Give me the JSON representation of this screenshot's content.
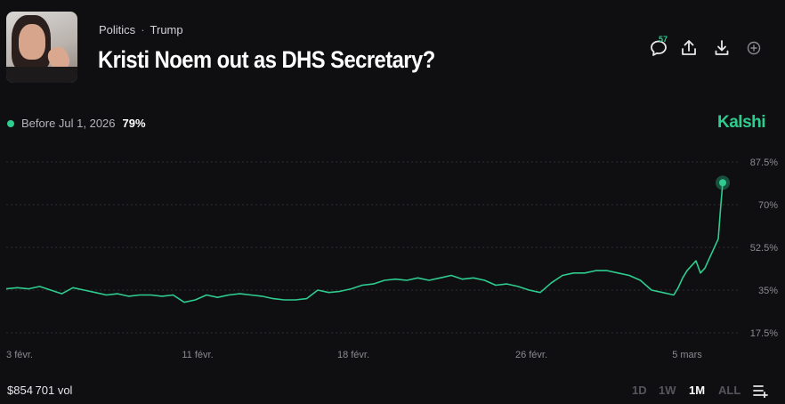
{
  "header": {
    "category": "Politics",
    "subcategory": "Trump",
    "title": "Kristi Noem out as DHS Secretary?",
    "comment_count": "57"
  },
  "actions": [
    {
      "name": "comments-icon"
    },
    {
      "name": "share-icon"
    },
    {
      "name": "download-icon"
    },
    {
      "name": "add-icon"
    }
  ],
  "legend": {
    "label": "Before Jul 1, 2026",
    "value": "79%",
    "color": "#2ecc8f"
  },
  "brand": "Kalshi",
  "footer": {
    "volume": "$854 701 vol",
    "ranges": [
      "1D",
      "1W",
      "1M",
      "ALL"
    ],
    "active_range": "1M"
  },
  "colors": {
    "accent": "#2ecc8f",
    "background": "#0f0f12"
  },
  "chart_data": {
    "type": "line",
    "series": [
      {
        "name": "Before Jul 1, 2026",
        "x": [
          0,
          0.5,
          1,
          1.5,
          2,
          2.5,
          3,
          3.5,
          4,
          4.5,
          5,
          5.5,
          6,
          6.5,
          7,
          7.5,
          8,
          8.5,
          9,
          9.5,
          10,
          10.5,
          11,
          11.5,
          12,
          12.5,
          13,
          13.5,
          14,
          14.5,
          15,
          15.5,
          16,
          16.5,
          17,
          17.5,
          18,
          18.5,
          19,
          19.5,
          20,
          20.5,
          21,
          21.5,
          22,
          22.5,
          23,
          23.5,
          24,
          24.5,
          25,
          25.5,
          26,
          26.5,
          27,
          27.5,
          28,
          28.5,
          29,
          29.5,
          30,
          30.2,
          30.4,
          30.6,
          30.8,
          31,
          31.2,
          31.4,
          31.6,
          31.8,
          32,
          32.1,
          32.2
        ],
        "values": [
          35.5,
          36,
          35.5,
          36.5,
          35,
          33.5,
          36,
          35,
          34,
          33,
          33.5,
          32.5,
          33,
          33,
          32.5,
          33,
          30,
          31,
          33,
          32,
          33,
          33.5,
          33,
          32.5,
          31.5,
          31,
          31,
          31.5,
          35,
          34,
          34.5,
          35.5,
          37,
          37.5,
          39,
          39.5,
          39,
          40,
          39,
          40,
          41,
          39.5,
          40,
          39,
          37,
          37.5,
          36.5,
          35,
          34,
          38,
          41,
          42,
          42,
          43,
          43,
          42,
          41,
          39,
          35,
          34,
          33,
          36,
          40,
          43,
          45,
          47,
          42,
          44,
          48,
          52,
          56,
          68,
          79
        ]
      }
    ],
    "x_ticks": [
      {
        "x": 0.6,
        "label": "3 févr."
      },
      {
        "x": 8.6,
        "label": "11 févr."
      },
      {
        "x": 15.6,
        "label": "18 févr."
      },
      {
        "x": 23.6,
        "label": "26 févr."
      },
      {
        "x": 30.6,
        "label": "5 mars"
      }
    ],
    "y_ticks": [
      {
        "y": 17.5,
        "label": "17.5%"
      },
      {
        "y": 35,
        "label": "35%"
      },
      {
        "y": 52.5,
        "label": "52.5%"
      },
      {
        "y": 70,
        "label": "70%"
      },
      {
        "y": 87.5,
        "label": "87.5%"
      }
    ],
    "ylim": [
      17.5,
      87.5
    ],
    "xlim": [
      0,
      32.2
    ],
    "grid": true,
    "current_value": 79
  }
}
